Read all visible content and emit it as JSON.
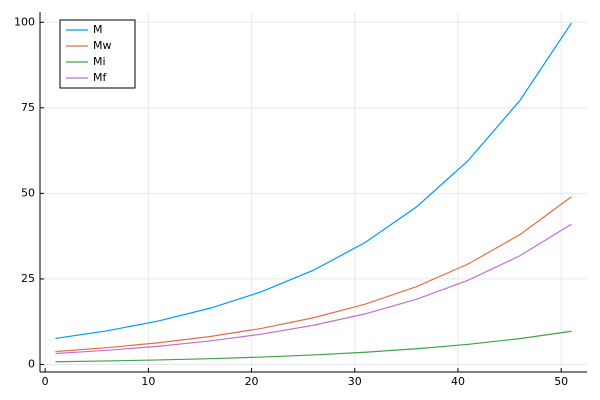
{
  "chart_data": {
    "type": "line",
    "x": [
      1,
      6,
      11,
      16,
      21,
      26,
      31,
      36,
      41,
      46,
      51
    ],
    "series": [
      {
        "name": "M",
        "color": "#009af9",
        "values": [
          7.6,
          9.83,
          12.72,
          16.46,
          21.29,
          27.54,
          35.63,
          46.09,
          59.63,
          77.14,
          99.8
        ]
      },
      {
        "name": "Mw",
        "color": "#e26f46",
        "values": [
          3.8,
          4.91,
          6.34,
          8.18,
          10.57,
          13.65,
          17.62,
          22.76,
          29.39,
          37.95,
          49.0
        ]
      },
      {
        "name": "Mi",
        "color": "#3da44d",
        "values": [
          0.8,
          1.03,
          1.32,
          1.69,
          2.17,
          2.79,
          3.58,
          4.59,
          5.89,
          7.56,
          9.7
        ]
      },
      {
        "name": "Mf",
        "color": "#c271d2",
        "values": [
          3.2,
          4.13,
          5.33,
          6.88,
          8.88,
          11.46,
          14.78,
          19.08,
          24.62,
          31.77,
          41.0
        ]
      }
    ],
    "xlim": [
      -0.5,
      52.5
    ],
    "xticks": [
      0,
      10,
      20,
      30,
      40,
      50
    ],
    "ylim": [
      -2.2,
      103
    ],
    "yticks": [
      0,
      25,
      50,
      75,
      100
    ],
    "grid": true,
    "legend": "topleft"
  }
}
